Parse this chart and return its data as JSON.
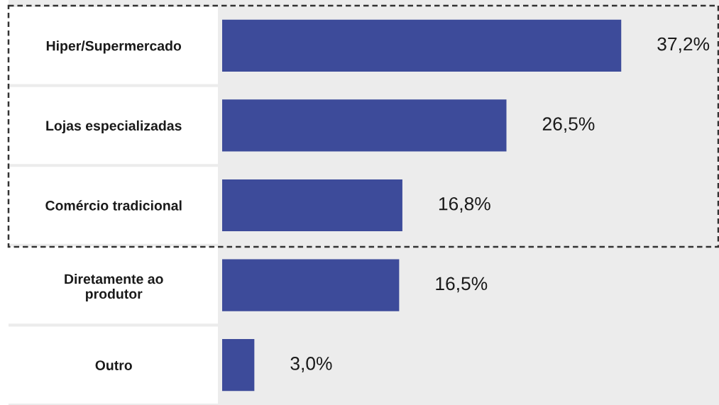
{
  "chart_data": {
    "type": "bar",
    "orientation": "horizontal",
    "categories": [
      "Hiper/Supermercado",
      "Lojas especializadas",
      "Comércio tradicional",
      "Diretamente ao\nprodutor",
      "Outro"
    ],
    "values": [
      37.2,
      26.5,
      16.8,
      16.5,
      3.0
    ],
    "value_labels": [
      "37,2%",
      "26,5%",
      "16,8%",
      "16,5%",
      "3,0%"
    ],
    "color": "#3d4b9a",
    "grid": false,
    "legend": false
  }
}
